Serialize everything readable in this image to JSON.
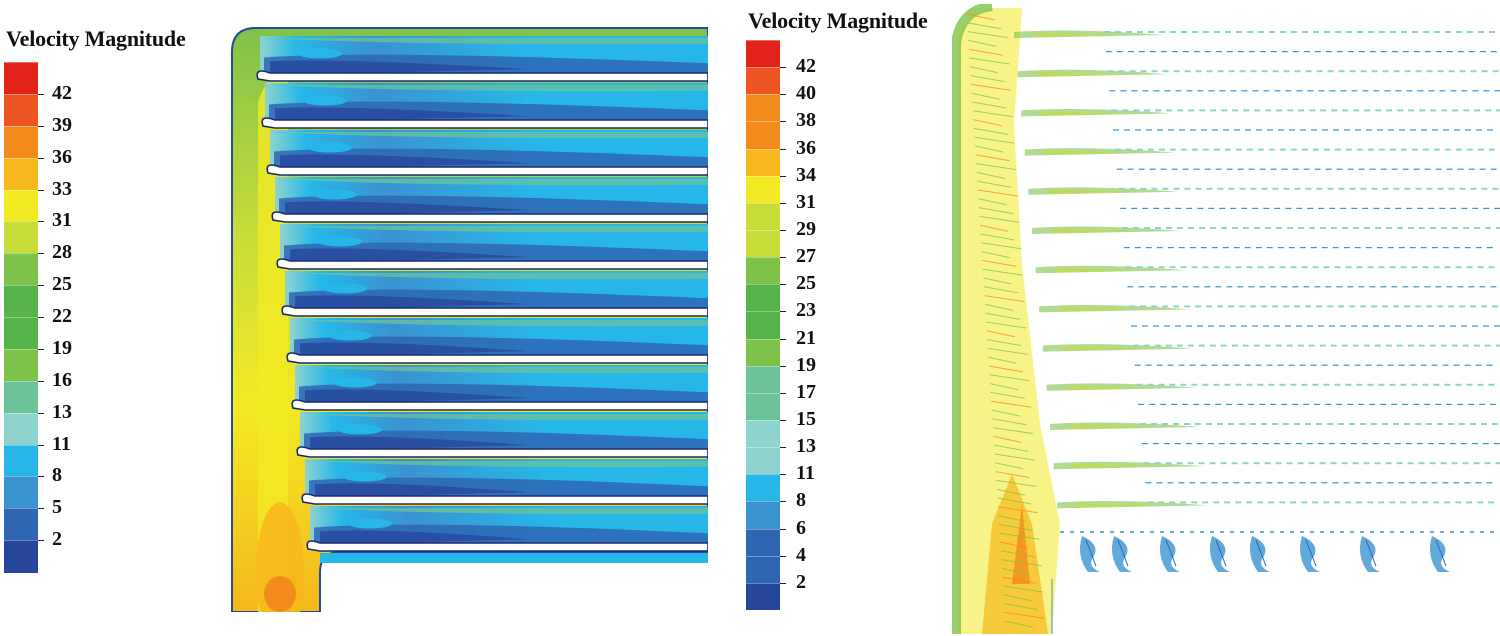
{
  "left_panel": {
    "legend_title": "Velocity Magnitude",
    "legend_labels": [
      "42",
      "39",
      "36",
      "33",
      "31",
      "28",
      "25",
      "22",
      "19",
      "16",
      "13",
      "11",
      "8",
      "5",
      "2"
    ]
  },
  "right_panel": {
    "legend_title": "Velocity Magnitude",
    "legend_labels": [
      "42",
      "40",
      "38",
      "36",
      "34",
      "31",
      "29",
      "27",
      "25",
      "23",
      "21",
      "19",
      "17",
      "15",
      "13",
      "11",
      "8",
      "6",
      "4",
      "2"
    ]
  },
  "colors": {
    "red": "#e2231a",
    "orange_red": "#ee5322",
    "orange": "#f38b1c",
    "light_orange": "#f6b81c",
    "yellow": "#f2ea23",
    "yellow_green": "#c8dc3a",
    "green": "#7fc24a",
    "mid_green": "#56b34a",
    "teal_green": "#6cc39a",
    "light_teal": "#8fd3cf",
    "cyan": "#26b7e8",
    "light_blue": "#3a93d1",
    "blue": "#2e66b4",
    "dark_blue": "#27479c"
  }
}
